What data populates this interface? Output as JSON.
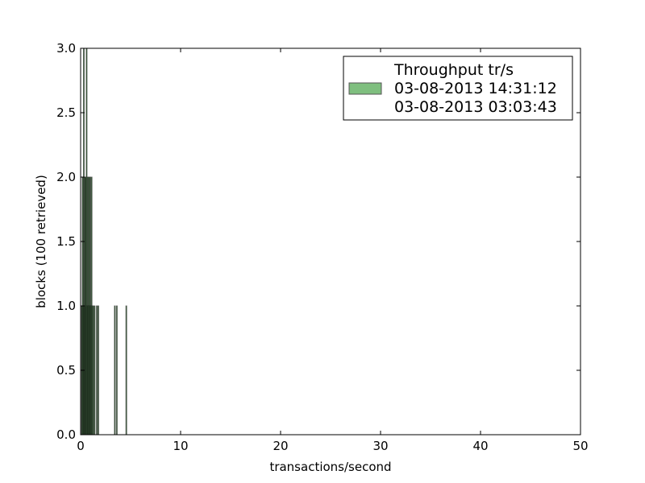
{
  "chart_data": {
    "type": "bar",
    "subtype": "histogram",
    "title": "",
    "xlabel": "transactions/second",
    "ylabel": "blocks (100 retrieved)",
    "xlim": [
      0,
      50
    ],
    "ylim": [
      0,
      3
    ],
    "xticks": [
      0,
      10,
      20,
      30,
      40,
      50
    ],
    "yticks": [
      0.0,
      0.5,
      1.0,
      1.5,
      2.0,
      2.5,
      3.0
    ],
    "ytick_labels": [
      "0.0",
      "0.5",
      "1.0",
      "1.5",
      "2.0",
      "2.5",
      "3.0"
    ],
    "grid": false,
    "legend": {
      "placement": "top-right",
      "entries": [
        "Throughput tr/s",
        "03-08-2013 14:31:12",
        "03-08-2013 03:03:43"
      ]
    },
    "series": [
      {
        "color": "#7fbf7f",
        "bar_width": 0.04,
        "bars": [
          {
            "x": 0.1,
            "y": 1
          },
          {
            "x": 0.18,
            "y": 2
          },
          {
            "x": 0.24,
            "y": 1
          },
          {
            "x": 0.3,
            "y": 3
          },
          {
            "x": 0.36,
            "y": 1
          },
          {
            "x": 0.42,
            "y": 2
          },
          {
            "x": 0.48,
            "y": 1
          },
          {
            "x": 0.52,
            "y": 2
          },
          {
            "x": 0.58,
            "y": 3
          },
          {
            "x": 0.64,
            "y": 1
          },
          {
            "x": 0.7,
            "y": 2
          },
          {
            "x": 0.76,
            "y": 1
          },
          {
            "x": 0.82,
            "y": 2
          },
          {
            "x": 0.88,
            "y": 1
          },
          {
            "x": 0.94,
            "y": 2
          },
          {
            "x": 1.0,
            "y": 1
          },
          {
            "x": 1.08,
            "y": 2
          },
          {
            "x": 1.15,
            "y": 1
          },
          {
            "x": 1.25,
            "y": 1
          },
          {
            "x": 1.38,
            "y": 1
          },
          {
            "x": 1.6,
            "y": 1
          },
          {
            "x": 1.75,
            "y": 1
          },
          {
            "x": 3.4,
            "y": 1
          },
          {
            "x": 3.6,
            "y": 1
          },
          {
            "x": 4.55,
            "y": 1
          }
        ]
      }
    ]
  }
}
